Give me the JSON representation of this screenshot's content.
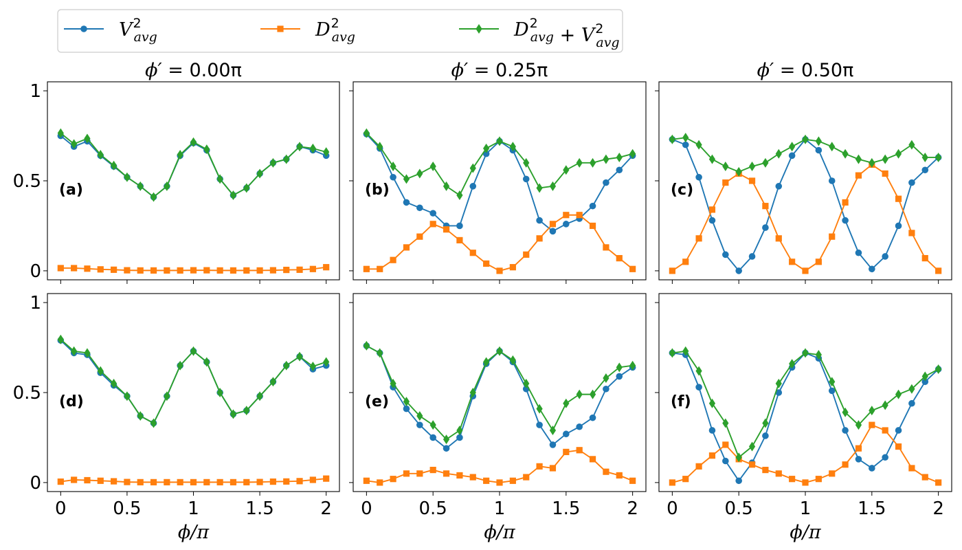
{
  "legend": {
    "entries": [
      {
        "key": "V2",
        "base": "V",
        "sup": "2",
        "sub": "avg",
        "color": "#1f77b4",
        "marker": "circle"
      },
      {
        "key": "D2",
        "base": "D",
        "sup": "2",
        "sub": "avg",
        "color": "#ff7f0e",
        "marker": "square"
      },
      {
        "key": "sum",
        "base": "D",
        "sup": "2",
        "sub": "avg",
        "plus": " + ",
        "base2": "V",
        "sup2": "2",
        "sub2": "avg",
        "color": "#2ca02c",
        "marker": "diamond"
      }
    ]
  },
  "columns": [
    {
      "title_prefix": "ϕ′ = ",
      "title_value": "0.00π"
    },
    {
      "title_prefix": "ϕ′ = ",
      "title_value": "0.25π"
    },
    {
      "title_prefix": "ϕ′ = ",
      "title_value": "0.50π"
    }
  ],
  "xlabel": {
    "text": "ϕ/π"
  },
  "x_tick_labels": [
    "0",
    "0.5",
    "1",
    "1.5",
    "2"
  ],
  "y_tick_labels": [
    "1",
    "0.5",
    "0"
  ],
  "chart_data": {
    "type": "line",
    "x": [
      0,
      0.1,
      0.2,
      0.3,
      0.4,
      0.5,
      0.6,
      0.7,
      0.8,
      0.9,
      1.0,
      1.1,
      1.2,
      1.3,
      1.4,
      1.5,
      1.6,
      1.7,
      1.8,
      1.9,
      2.0
    ],
    "xlim": [
      -0.1,
      2.1
    ],
    "ylim": [
      -0.05,
      1.05
    ],
    "xticks": [
      0,
      0.5,
      1,
      1.5,
      2
    ],
    "yticks": [
      0,
      0.5,
      1
    ],
    "xlabel": "ϕ/π",
    "panels": [
      {
        "label": "(a)",
        "phi_prime": "0.00π",
        "series": [
          {
            "name": "V2",
            "values": [
              0.75,
              0.69,
              0.72,
              0.64,
              0.58,
              0.52,
              0.47,
              0.41,
              0.47,
              0.64,
              0.71,
              0.67,
              0.51,
              0.42,
              0.46,
              0.54,
              0.6,
              0.62,
              0.69,
              0.67,
              0.64
            ]
          },
          {
            "name": "D2",
            "values": [
              0.015,
              0.015,
              0.012,
              0.008,
              0.006,
              0.003,
              0.002,
              0.002,
              0.002,
              0.002,
              0.003,
              0.003,
              0.002,
              0.002,
              0.002,
              0.002,
              0.003,
              0.005,
              0.006,
              0.01,
              0.02
            ]
          },
          {
            "name": "sum",
            "values": [
              0.765,
              0.705,
              0.735,
              0.645,
              0.585,
              0.52,
              0.47,
              0.41,
              0.47,
              0.645,
              0.715,
              0.675,
              0.51,
              0.42,
              0.46,
              0.54,
              0.6,
              0.62,
              0.69,
              0.68,
              0.66
            ]
          }
        ]
      },
      {
        "label": "(b)",
        "phi_prime": "0.25π",
        "series": [
          {
            "name": "V2",
            "values": [
              0.76,
              0.68,
              0.52,
              0.38,
              0.35,
              0.32,
              0.25,
              0.25,
              0.47,
              0.65,
              0.72,
              0.67,
              0.51,
              0.28,
              0.22,
              0.26,
              0.29,
              0.36,
              0.49,
              0.56,
              0.64
            ]
          },
          {
            "name": "D2",
            "values": [
              0.01,
              0.01,
              0.06,
              0.13,
              0.19,
              0.26,
              0.23,
              0.17,
              0.1,
              0.04,
              0.0,
              0.02,
              0.09,
              0.18,
              0.26,
              0.31,
              0.31,
              0.25,
              0.13,
              0.07,
              0.01
            ]
          },
          {
            "name": "sum",
            "values": [
              0.765,
              0.69,
              0.58,
              0.51,
              0.54,
              0.58,
              0.47,
              0.42,
              0.57,
              0.68,
              0.72,
              0.69,
              0.6,
              0.46,
              0.47,
              0.56,
              0.6,
              0.6,
              0.62,
              0.63,
              0.65
            ]
          }
        ]
      },
      {
        "label": "(c)",
        "phi_prime": "0.50π",
        "series": [
          {
            "name": "V2",
            "values": [
              0.73,
              0.7,
              0.52,
              0.28,
              0.09,
              0.0,
              0.08,
              0.24,
              0.47,
              0.64,
              0.73,
              0.67,
              0.5,
              0.28,
              0.1,
              0.01,
              0.08,
              0.25,
              0.49,
              0.56,
              0.63
            ]
          },
          {
            "name": "D2",
            "values": [
              0.0,
              0.05,
              0.18,
              0.34,
              0.49,
              0.54,
              0.5,
              0.36,
              0.18,
              0.05,
              0.0,
              0.05,
              0.19,
              0.38,
              0.53,
              0.59,
              0.54,
              0.4,
              0.21,
              0.07,
              0.0
            ]
          },
          {
            "name": "sum",
            "values": [
              0.73,
              0.74,
              0.7,
              0.62,
              0.58,
              0.55,
              0.58,
              0.6,
              0.65,
              0.69,
              0.73,
              0.72,
              0.69,
              0.65,
              0.62,
              0.6,
              0.62,
              0.65,
              0.7,
              0.63,
              0.63
            ]
          }
        ]
      },
      {
        "label": "(d)",
        "phi_prime": "0.00π",
        "series": [
          {
            "name": "V2",
            "values": [
              0.79,
              0.72,
              0.71,
              0.61,
              0.54,
              0.48,
              0.37,
              0.33,
              0.48,
              0.65,
              0.73,
              0.67,
              0.5,
              0.38,
              0.4,
              0.48,
              0.56,
              0.65,
              0.7,
              0.63,
              0.65
            ]
          },
          {
            "name": "D2",
            "values": [
              0.005,
              0.015,
              0.013,
              0.01,
              0.007,
              0.003,
              0.002,
              0.002,
              0.002,
              0.002,
              0.002,
              0.002,
              0.002,
              0.002,
              0.002,
              0.003,
              0.005,
              0.006,
              0.008,
              0.015,
              0.022
            ]
          },
          {
            "name": "sum",
            "values": [
              0.795,
              0.73,
              0.72,
              0.62,
              0.55,
              0.48,
              0.37,
              0.33,
              0.48,
              0.65,
              0.73,
              0.67,
              0.5,
              0.38,
              0.4,
              0.48,
              0.56,
              0.65,
              0.7,
              0.645,
              0.67
            ]
          }
        ]
      },
      {
        "label": "(e)",
        "phi_prime": "0.25π",
        "series": [
          {
            "name": "V2",
            "values": [
              0.76,
              0.72,
              0.53,
              0.41,
              0.32,
              0.25,
              0.19,
              0.25,
              0.48,
              0.66,
              0.73,
              0.67,
              0.52,
              0.32,
              0.21,
              0.27,
              0.31,
              0.36,
              0.52,
              0.59,
              0.64
            ]
          },
          {
            "name": "D2",
            "values": [
              0.01,
              0.0,
              0.02,
              0.05,
              0.05,
              0.07,
              0.05,
              0.04,
              0.03,
              0.01,
              0.0,
              0.01,
              0.03,
              0.09,
              0.08,
              0.17,
              0.18,
              0.13,
              0.06,
              0.04,
              0.01
            ]
          },
          {
            "name": "sum",
            "values": [
              0.76,
              0.72,
              0.55,
              0.45,
              0.37,
              0.32,
              0.24,
              0.29,
              0.5,
              0.67,
              0.73,
              0.68,
              0.55,
              0.41,
              0.29,
              0.44,
              0.49,
              0.49,
              0.58,
              0.64,
              0.65
            ]
          }
        ]
      },
      {
        "label": "(f)",
        "phi_prime": "0.50π",
        "series": [
          {
            "name": "V2",
            "values": [
              0.72,
              0.71,
              0.53,
              0.29,
              0.12,
              0.01,
              0.11,
              0.26,
              0.5,
              0.64,
              0.72,
              0.69,
              0.51,
              0.29,
              0.13,
              0.08,
              0.14,
              0.29,
              0.44,
              0.56,
              0.63
            ]
          },
          {
            "name": "D2",
            "values": [
              0.0,
              0.02,
              0.09,
              0.15,
              0.21,
              0.13,
              0.1,
              0.07,
              0.05,
              0.02,
              0.0,
              0.02,
              0.05,
              0.1,
              0.19,
              0.32,
              0.29,
              0.2,
              0.08,
              0.03,
              0.0
            ]
          },
          {
            "name": "sum",
            "values": [
              0.72,
              0.73,
              0.62,
              0.44,
              0.33,
              0.14,
              0.2,
              0.33,
              0.55,
              0.66,
              0.72,
              0.71,
              0.56,
              0.39,
              0.32,
              0.4,
              0.43,
              0.49,
              0.52,
              0.59,
              0.63
            ]
          }
        ]
      }
    ]
  }
}
